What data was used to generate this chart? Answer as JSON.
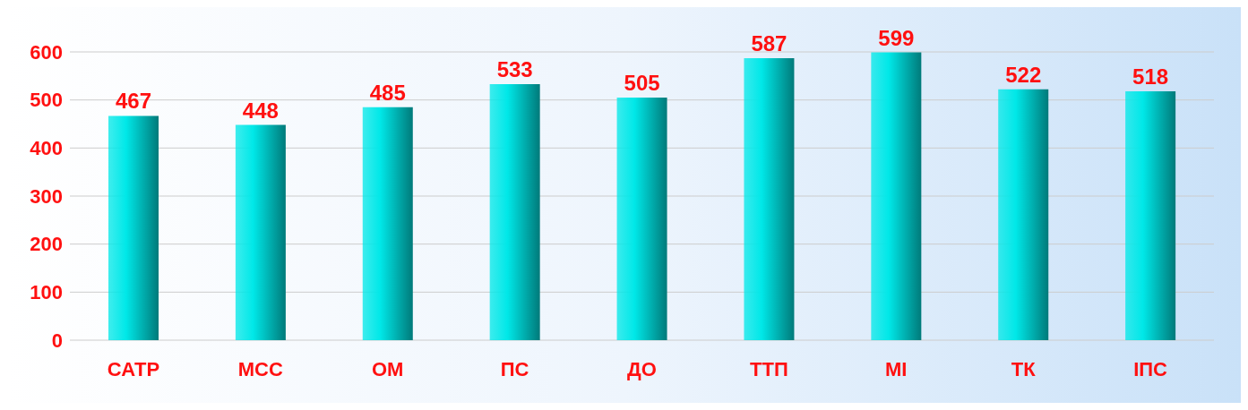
{
  "chart_data": {
    "type": "bar",
    "categories": [
      "САТР",
      "МСС",
      "ОМ",
      "ПС",
      "ДО",
      "ТТП",
      "МІ",
      "ТК",
      "ІПС"
    ],
    "values": [
      467,
      448,
      485,
      533,
      505,
      587,
      599,
      522,
      518
    ],
    "color": "#00e8e8",
    "ylim": [
      0,
      600
    ],
    "yticks": [
      0,
      100,
      200,
      300,
      400,
      500,
      600
    ],
    "grid": "y",
    "data_labels": true
  }
}
